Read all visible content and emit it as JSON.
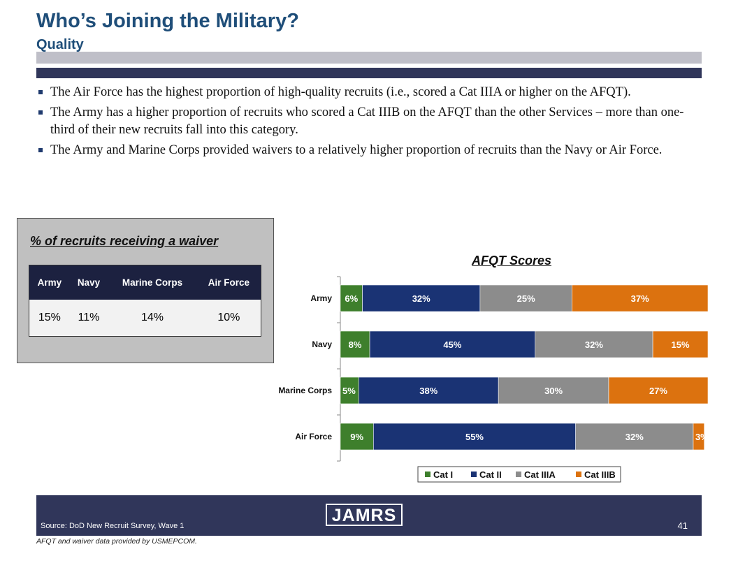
{
  "header": {
    "title": "Who’s Joining the Military?",
    "subtitle": "Quality"
  },
  "bullets": [
    "The Air Force has the highest proportion of high-quality recruits (i.e., scored a Cat IIIA or higher on the AFQT).",
    "The Army has a higher proportion of recruits who scored a Cat IIIB on the AFQT than the other Services – more than one-third of their new recruits fall into this category.",
    "The Army and Marine Corps provided waivers to a relatively higher proportion of recruits than the Navy or Air Force."
  ],
  "waiver": {
    "title": "% of recruits receiving a waiver",
    "headers": [
      "Army",
      "Navy",
      "Marine Corps",
      "Air Force"
    ],
    "values": [
      "15%",
      "11%",
      "14%",
      "10%"
    ]
  },
  "chart_data": {
    "type": "bar",
    "orientation": "horizontal",
    "stacked": true,
    "title": "AFQT Scores",
    "categories": [
      "Army",
      "Navy",
      "Marine Corps",
      "Air Force"
    ],
    "series": [
      {
        "name": "Cat I",
        "values": [
          6,
          8,
          5,
          9
        ],
        "labels": [
          "6%",
          "8%",
          "5%",
          "9%"
        ],
        "color": "#3e7f2c"
      },
      {
        "name": "Cat II",
        "values": [
          32,
          45,
          38,
          55
        ],
        "labels": [
          "32%",
          "45%",
          "38%",
          "55%"
        ],
        "color": "#1a3374"
      },
      {
        "name": "Cat IIIA",
        "values": [
          25,
          32,
          30,
          32
        ],
        "labels": [
          "25%",
          "32%",
          "30%",
          "32%"
        ],
        "color": "#8c8c8c"
      },
      {
        "name": "Cat IIIB",
        "values": [
          37,
          15,
          27,
          3
        ],
        "labels": [
          "37%",
          "15%",
          "27%",
          "3%"
        ],
        "color": "#dc720f"
      }
    ],
    "xlim": [
      0,
      100
    ],
    "legend": "bottom",
    "grid": false
  },
  "footer": {
    "source": "Source:  DoD New Recruit Survey, Wave 1",
    "logo": "JAMRS",
    "page_number": "41",
    "footnote": "AFQT and waiver data provided by USMEPCOM."
  }
}
